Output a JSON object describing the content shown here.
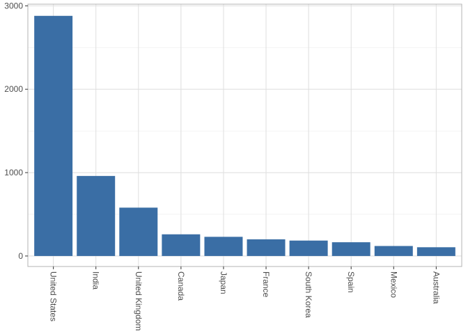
{
  "chart_data": {
    "type": "bar",
    "title": "",
    "xlabel": "",
    "ylabel": "",
    "categories": [
      "United States",
      "India",
      "United Kingdom",
      "Canada",
      "Japan",
      "France",
      "South Korea",
      "Spain",
      "Mexico",
      "Australia"
    ],
    "values": [
      2880,
      960,
      580,
      260,
      230,
      200,
      185,
      165,
      120,
      105
    ],
    "ylim": [
      -126,
      3020
    ],
    "yticks": [
      0,
      1000,
      2000,
      3000
    ],
    "ytick_labels": [
      "0",
      "1000",
      "2000",
      "3000"
    ],
    "grid": true,
    "legend": "none",
    "bar_color": "#3a6ea5",
    "panel_border_color": "#b3b3b3",
    "grid_major_color": "#dedede",
    "grid_minor_color": "#eeeeee",
    "tick_label_color": "#4d4d4d"
  }
}
